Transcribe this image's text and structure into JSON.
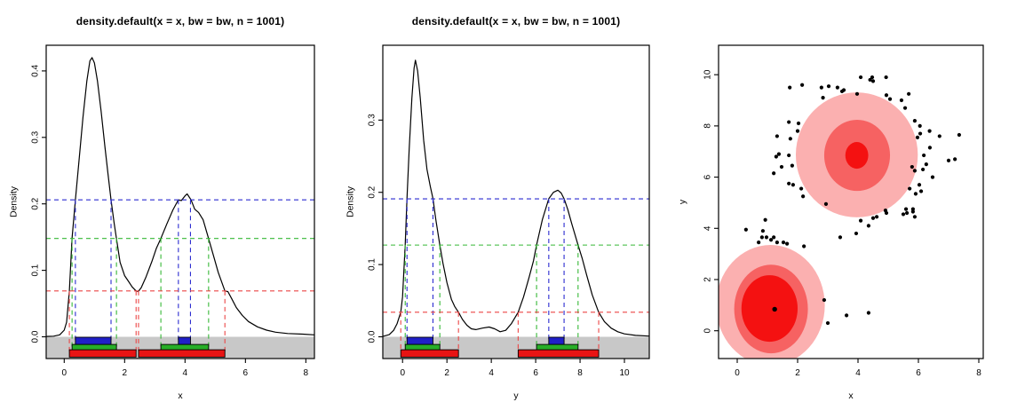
{
  "figure": {
    "background": "#ffffff"
  },
  "chart_data": [
    {
      "type": "line",
      "id": "density-x-hdr",
      "title": "density.default(x = x, bw = bw, n = 1001)",
      "xlabel": "x",
      "ylabel": "Density",
      "xlim": [
        -0.597,
        8.284
      ],
      "ylim": [
        -0.0327,
        0.4386
      ],
      "xticks": [
        0,
        2,
        4,
        6,
        8
      ],
      "xtick_labels": [
        "0",
        "2",
        "4",
        "6",
        "8"
      ],
      "yticks": [
        0,
        0.1,
        0.2,
        0.3,
        0.4
      ],
      "ytick_labels": [
        "0.0",
        "0.1",
        "0.2",
        "0.3",
        "0.4"
      ],
      "grid": false,
      "curve_color": "#000000",
      "band_color": "#C8C8C8",
      "curve": [
        [
          -0.59,
          0.0005
        ],
        [
          -0.35,
          0.001
        ],
        [
          -0.15,
          0.003
        ],
        [
          0.0,
          0.01
        ],
        [
          0.08,
          0.022
        ],
        [
          0.17,
          0.069
        ],
        [
          0.26,
          0.148
        ],
        [
          0.37,
          0.206
        ],
        [
          0.5,
          0.27
        ],
        [
          0.62,
          0.33
        ],
        [
          0.75,
          0.385
        ],
        [
          0.85,
          0.415
        ],
        [
          0.92,
          0.42
        ],
        [
          1.0,
          0.412
        ],
        [
          1.1,
          0.385
        ],
        [
          1.22,
          0.34
        ],
        [
          1.35,
          0.285
        ],
        [
          1.45,
          0.245
        ],
        [
          1.55,
          0.206
        ],
        [
          1.65,
          0.172
        ],
        [
          1.73,
          0.148
        ],
        [
          1.85,
          0.112
        ],
        [
          2.0,
          0.092
        ],
        [
          2.12,
          0.084
        ],
        [
          2.25,
          0.075
        ],
        [
          2.38,
          0.069
        ],
        [
          2.45,
          0.068
        ],
        [
          2.55,
          0.074
        ],
        [
          2.7,
          0.089
        ],
        [
          2.9,
          0.113
        ],
        [
          3.05,
          0.133
        ],
        [
          3.2,
          0.148
        ],
        [
          3.4,
          0.17
        ],
        [
          3.6,
          0.191
        ],
        [
          3.78,
          0.206
        ],
        [
          3.88,
          0.205
        ],
        [
          4.0,
          0.212
        ],
        [
          4.07,
          0.215
        ],
        [
          4.2,
          0.206
        ],
        [
          4.32,
          0.192
        ],
        [
          4.45,
          0.187
        ],
        [
          4.6,
          0.176
        ],
        [
          4.78,
          0.148
        ],
        [
          4.95,
          0.121
        ],
        [
          5.1,
          0.097
        ],
        [
          5.32,
          0.069
        ],
        [
          5.42,
          0.068
        ],
        [
          5.55,
          0.057
        ],
        [
          5.7,
          0.044
        ],
        [
          5.9,
          0.032
        ],
        [
          6.1,
          0.023
        ],
        [
          6.4,
          0.015
        ],
        [
          6.7,
          0.01
        ],
        [
          7.0,
          0.007
        ],
        [
          7.4,
          0.005
        ],
        [
          7.9,
          0.004
        ],
        [
          8.28,
          0.003
        ]
      ],
      "hdr": [
        {
          "line_color": "#2B2BD0",
          "bar_color": "#2020C8",
          "level": 0.206,
          "intervals": [
            [
              0.37,
              1.55
            ],
            [
              3.78,
              4.18
            ]
          ]
        },
        {
          "line_color": "#36B836",
          "bar_color": "#27AE27",
          "level": 0.148,
          "intervals": [
            [
              0.26,
              1.73
            ],
            [
              3.2,
              4.78
            ]
          ]
        },
        {
          "line_color": "#EC4545",
          "bar_color": "#E81414",
          "level": 0.069,
          "intervals": [
            [
              0.17,
              2.38
            ],
            [
              2.46,
              5.32
            ]
          ]
        }
      ]
    },
    {
      "type": "line",
      "id": "density-y-hdr",
      "title": "density.default(x = x, bw = bw, n = 1001)",
      "xlabel": "y",
      "ylabel": "Density",
      "xlim": [
        -0.89,
        11.12
      ],
      "ylim": [
        -0.0301,
        0.4036
      ],
      "xticks": [
        0,
        2,
        4,
        6,
        8,
        10
      ],
      "xtick_labels": [
        "0",
        "2",
        "4",
        "6",
        "8",
        "10"
      ],
      "yticks": [
        0,
        0.1,
        0.2,
        0.3
      ],
      "ytick_labels": [
        "0.0",
        "0.1",
        "0.2",
        "0.3"
      ],
      "grid": false,
      "curve_color": "#000000",
      "band_color": "#C8C8C8",
      "curve": [
        [
          -0.89,
          0.0005
        ],
        [
          -0.6,
          0.003
        ],
        [
          -0.4,
          0.009
        ],
        [
          -0.25,
          0.018
        ],
        [
          -0.08,
          0.034
        ],
        [
          0.0,
          0.055
        ],
        [
          0.12,
          0.127
        ],
        [
          0.2,
          0.191
        ],
        [
          0.3,
          0.26
        ],
        [
          0.42,
          0.33
        ],
        [
          0.52,
          0.372
        ],
        [
          0.58,
          0.383
        ],
        [
          0.68,
          0.368
        ],
        [
          0.8,
          0.33
        ],
        [
          0.95,
          0.272
        ],
        [
          1.1,
          0.232
        ],
        [
          1.25,
          0.208
        ],
        [
          1.37,
          0.191
        ],
        [
          1.5,
          0.162
        ],
        [
          1.68,
          0.127
        ],
        [
          1.82,
          0.102
        ],
        [
          2.0,
          0.075
        ],
        [
          2.2,
          0.052
        ],
        [
          2.35,
          0.042
        ],
        [
          2.52,
          0.034
        ],
        [
          2.7,
          0.024
        ],
        [
          2.9,
          0.016
        ],
        [
          3.1,
          0.011
        ],
        [
          3.3,
          0.01
        ],
        [
          3.6,
          0.012
        ],
        [
          3.9,
          0.0135
        ],
        [
          4.15,
          0.011
        ],
        [
          4.4,
          0.007
        ],
        [
          4.65,
          0.009
        ],
        [
          4.9,
          0.018
        ],
        [
          5.21,
          0.034
        ],
        [
          5.45,
          0.055
        ],
        [
          5.7,
          0.082
        ],
        [
          5.9,
          0.105
        ],
        [
          6.04,
          0.127
        ],
        [
          6.3,
          0.162
        ],
        [
          6.59,
          0.191
        ],
        [
          6.8,
          0.2
        ],
        [
          7.0,
          0.203
        ],
        [
          7.15,
          0.199
        ],
        [
          7.28,
          0.191
        ],
        [
          7.45,
          0.176
        ],
        [
          7.62,
          0.157
        ],
        [
          7.91,
          0.127
        ],
        [
          8.1,
          0.108
        ],
        [
          8.3,
          0.085
        ],
        [
          8.55,
          0.058
        ],
        [
          8.84,
          0.034
        ],
        [
          9.1,
          0.021
        ],
        [
          9.4,
          0.012
        ],
        [
          9.7,
          0.007
        ],
        [
          10.0,
          0.004
        ],
        [
          10.5,
          0.002
        ],
        [
          11.1,
          0.001
        ]
      ],
      "hdr": [
        {
          "line_color": "#2B2BD0",
          "bar_color": "#2020C8",
          "level": 0.191,
          "intervals": [
            [
              0.2,
              1.37
            ],
            [
              6.59,
              7.28
            ]
          ]
        },
        {
          "line_color": "#36B836",
          "bar_color": "#27AE27",
          "level": 0.127,
          "intervals": [
            [
              0.12,
              1.68
            ],
            [
              6.04,
              7.91
            ]
          ]
        },
        {
          "line_color": "#EC4545",
          "bar_color": "#E81414",
          "level": 0.034,
          "intervals": [
            [
              -0.08,
              2.52
            ],
            [
              5.21,
              8.84
            ]
          ]
        }
      ]
    },
    {
      "type": "scatter",
      "id": "bivariate-hdr-boxplot",
      "title": "",
      "xlabel": "x",
      "ylabel": "y",
      "xlim": [
        -0.618,
        8.147
      ],
      "ylim": [
        -1.085,
        11.15
      ],
      "xticks": [
        0,
        2,
        4,
        6,
        8
      ],
      "xtick_labels": [
        "0",
        "2",
        "4",
        "6",
        "8"
      ],
      "yticks": [
        0,
        2,
        4,
        6,
        8,
        10
      ],
      "ytick_labels": [
        "0",
        "2",
        "4",
        "6",
        "8",
        "10"
      ],
      "grid": false,
      "point_color": "#000000",
      "regions": [
        {
          "cx": 1.1,
          "cy": 1.0,
          "rx": 1.8,
          "ry": 2.35,
          "color": "#FBB0B0"
        },
        {
          "cx": 3.96,
          "cy": 6.87,
          "rx": 2.02,
          "ry": 2.44,
          "color": "#FBB0B0"
        },
        {
          "cx": 1.12,
          "cy": 0.85,
          "rx": 1.22,
          "ry": 1.73,
          "color": "#F66262"
        },
        {
          "cx": 3.97,
          "cy": 6.85,
          "rx": 1.09,
          "ry": 1.39,
          "color": "#F66262"
        },
        {
          "cx": 1.07,
          "cy": 0.87,
          "rx": 0.93,
          "ry": 1.3,
          "color": "#F41111"
        },
        {
          "cx": 3.96,
          "cy": 6.85,
          "rx": 0.38,
          "ry": 0.52,
          "color": "#F41111"
        }
      ],
      "mode_point": [
        1.24,
        0.84
      ],
      "points": [
        [
          1.74,
          9.5
        ],
        [
          2.15,
          9.6
        ],
        [
          2.79,
          9.5
        ],
        [
          3.03,
          9.55
        ],
        [
          3.32,
          9.5
        ],
        [
          3.53,
          9.4
        ],
        [
          3.47,
          9.35
        ],
        [
          4.09,
          9.9
        ],
        [
          4.4,
          9.8
        ],
        [
          4.47,
          9.9
        ],
        [
          4.5,
          9.75
        ],
        [
          4.93,
          9.9
        ],
        [
          3.97,
          9.25
        ],
        [
          4.94,
          9.2
        ],
        [
          5.06,
          9.05
        ],
        [
          5.44,
          9.0
        ],
        [
          5.68,
          9.25
        ],
        [
          5.56,
          8.7
        ],
        [
          2.84,
          9.1
        ],
        [
          5.88,
          8.2
        ],
        [
          6.05,
          8.0
        ],
        [
          6.37,
          7.8
        ],
        [
          6.7,
          7.6
        ],
        [
          7.35,
          7.65
        ],
        [
          1.32,
          7.6
        ],
        [
          1.71,
          8.15
        ],
        [
          2.03,
          8.1
        ],
        [
          2.0,
          7.8
        ],
        [
          1.76,
          7.5
        ],
        [
          1.38,
          6.9
        ],
        [
          1.29,
          6.8
        ],
        [
          1.71,
          6.85
        ],
        [
          1.82,
          6.45
        ],
        [
          1.21,
          6.15
        ],
        [
          1.47,
          6.4
        ],
        [
          1.71,
          5.75
        ],
        [
          1.85,
          5.7
        ],
        [
          2.12,
          5.55
        ],
        [
          2.18,
          5.25
        ],
        [
          2.94,
          4.95
        ],
        [
          0.93,
          4.33
        ],
        [
          4.09,
          4.3
        ],
        [
          4.5,
          4.4
        ],
        [
          4.91,
          4.7
        ],
        [
          5.59,
          4.75
        ],
        [
          5.82,
          4.65
        ],
        [
          5.91,
          5.35
        ],
        [
          6.09,
          5.45
        ],
        [
          6.15,
          6.3
        ],
        [
          6.26,
          6.5
        ],
        [
          6.38,
          7.15
        ],
        [
          6.18,
          6.85
        ],
        [
          6.06,
          7.7
        ],
        [
          5.97,
          7.55
        ],
        [
          5.79,
          6.4
        ],
        [
          5.88,
          6.25
        ],
        [
          6.03,
          5.7
        ],
        [
          5.71,
          5.55
        ],
        [
          7.0,
          6.65
        ],
        [
          7.21,
          6.7
        ],
        [
          6.47,
          6.0
        ],
        [
          0.29,
          3.95
        ],
        [
          0.85,
          3.9
        ],
        [
          0.71,
          3.45
        ],
        [
          0.82,
          3.65
        ],
        [
          0.97,
          3.65
        ],
        [
          1.12,
          3.55
        ],
        [
          1.21,
          3.65
        ],
        [
          1.32,
          3.45
        ],
        [
          1.53,
          3.45
        ],
        [
          1.65,
          3.4
        ],
        [
          2.21,
          3.3
        ],
        [
          3.41,
          3.65
        ],
        [
          3.94,
          3.8
        ],
        [
          4.35,
          4.1
        ],
        [
          4.62,
          4.45
        ],
        [
          4.94,
          4.6
        ],
        [
          5.5,
          4.55
        ],
        [
          5.62,
          4.6
        ],
        [
          5.82,
          4.75
        ],
        [
          5.88,
          4.45
        ],
        [
          2.88,
          1.2
        ],
        [
          3.0,
          0.3
        ],
        [
          3.62,
          0.6
        ],
        [
          4.35,
          0.7
        ]
      ]
    }
  ]
}
